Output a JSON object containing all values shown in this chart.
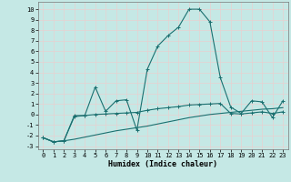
{
  "xlabel": "Humidex (Indice chaleur)",
  "bg_color": "#c5e8e5",
  "grid_color": "#e8d0d0",
  "line_color_main": "#1a7070",
  "line_color_trend1": "#1a7070",
  "line_color_trend2": "#1a7070",
  "xlim": [
    -0.5,
    23.5
  ],
  "ylim": [
    -3.3,
    10.7
  ],
  "yticks": [
    -3,
    -2,
    -1,
    0,
    1,
    2,
    3,
    4,
    5,
    6,
    7,
    8,
    9,
    10
  ],
  "xticks": [
    0,
    1,
    2,
    3,
    4,
    5,
    6,
    7,
    8,
    9,
    10,
    11,
    12,
    13,
    14,
    15,
    16,
    17,
    18,
    19,
    20,
    21,
    22,
    23
  ],
  "series1_x": [
    0,
    1,
    2,
    3,
    4,
    5,
    6,
    7,
    8,
    9,
    10,
    11,
    12,
    13,
    14,
    15,
    16,
    17,
    18,
    19,
    20,
    21,
    22,
    23
  ],
  "series1_y": [
    -2.2,
    -2.6,
    -2.5,
    -0.1,
    -0.1,
    2.6,
    0.3,
    1.3,
    1.4,
    -1.5,
    4.3,
    6.5,
    7.5,
    8.3,
    10.0,
    10.0,
    8.8,
    3.5,
    0.7,
    0.1,
    1.3,
    1.2,
    -0.3,
    1.3
  ],
  "series2_x": [
    0,
    1,
    2,
    3,
    4,
    5,
    6,
    7,
    8,
    9,
    10,
    11,
    12,
    13,
    14,
    15,
    16,
    17,
    18,
    19,
    20,
    21,
    22,
    23
  ],
  "series2_y": [
    -2.2,
    -2.6,
    -2.5,
    -0.2,
    -0.1,
    0.0,
    0.05,
    0.1,
    0.15,
    0.2,
    0.4,
    0.55,
    0.65,
    0.75,
    0.9,
    0.95,
    1.0,
    1.05,
    0.1,
    0.05,
    0.15,
    0.25,
    0.1,
    0.25
  ],
  "series3_x": [
    0,
    1,
    2,
    3,
    4,
    5,
    6,
    7,
    8,
    9,
    10,
    11,
    12,
    13,
    14,
    15,
    16,
    17,
    18,
    19,
    20,
    21,
    22,
    23
  ],
  "series3_y": [
    -2.2,
    -2.6,
    -2.5,
    -2.35,
    -2.15,
    -1.95,
    -1.75,
    -1.55,
    -1.4,
    -1.25,
    -1.1,
    -0.9,
    -0.7,
    -0.5,
    -0.3,
    -0.15,
    0.0,
    0.1,
    0.2,
    0.3,
    0.4,
    0.5,
    0.55,
    0.65
  ]
}
